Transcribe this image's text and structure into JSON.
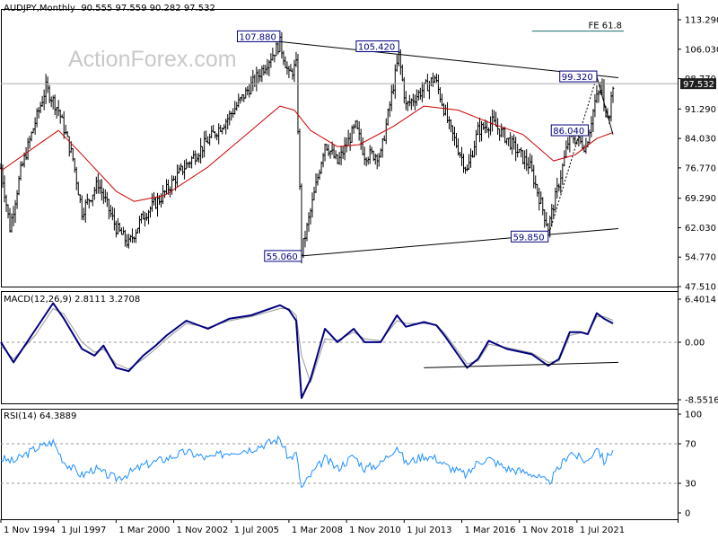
{
  "watermark": "ActionForex.com",
  "chart_data": [
    {
      "id": "price",
      "type": "ohlc",
      "title": "AUDJPY,Monthly",
      "ohlc_readout": "90.555 97.559 90.282 97.532",
      "y_ticks": [
        "113.290",
        "106.030",
        "98.770",
        "91.290",
        "84.030",
        "76.770",
        "69.290",
        "62.030",
        "54.770",
        "47.510"
      ],
      "ylim": [
        47.51,
        113.29
      ],
      "last_price": "97.532",
      "close_path": [
        [
          "1994-11",
          76.7
        ],
        [
          "1995-04",
          62.0
        ],
        [
          "1995-10",
          76.0
        ],
        [
          "1996-06",
          88.0
        ],
        [
          "1996-12",
          96.5
        ],
        [
          "1997-07",
          91.0
        ],
        [
          "1998-03",
          79.0
        ],
        [
          "1998-08",
          66.0
        ],
        [
          "1999-05",
          73.0
        ],
        [
          "2000-03",
          62.0
        ],
        [
          "2000-10",
          58.0
        ],
        [
          "2001-06",
          65.0
        ],
        [
          "2002-04",
          69.5
        ],
        [
          "2003-03",
          76.0
        ],
        [
          "2004-03",
          82.0
        ],
        [
          "2005-05",
          89.0
        ],
        [
          "2006-09",
          99.0
        ],
        [
          "2007-10",
          107.5
        ],
        [
          "2008-03",
          99.5
        ],
        [
          "2008-07",
          102.0
        ],
        [
          "2008-10",
          56.0
        ],
        [
          "2009-03",
          66.0
        ],
        [
          "2009-11",
          83.0
        ],
        [
          "2010-06",
          78.0
        ],
        [
          "2011-04",
          87.0
        ],
        [
          "2011-09",
          80.0
        ],
        [
          "2012-06",
          80.0
        ],
        [
          "2013-04",
          104.5
        ],
        [
          "2013-08",
          92.0
        ],
        [
          "2014-12",
          99.0
        ],
        [
          "2015-08",
          87.0
        ],
        [
          "2016-06",
          76.0
        ],
        [
          "2016-12",
          86.0
        ],
        [
          "2017-08",
          88.0
        ],
        [
          "2018-06",
          83.0
        ],
        [
          "2019-05",
          77.0
        ],
        [
          "2020-03",
          62.0
        ],
        [
          "2020-10",
          75.0
        ],
        [
          "2021-03",
          85.0
        ],
        [
          "2021-06",
          84.0
        ],
        [
          "2021-12",
          82.0
        ],
        [
          "2022-05",
          93.0
        ],
        [
          "2022-09",
          97.0
        ],
        [
          "2022-10",
          91.0
        ],
        [
          "2023-01",
          90.5
        ],
        [
          "2023-03",
          97.5
        ]
      ],
      "ma_path": [
        [
          "1994-11",
          76.0
        ],
        [
          "1996-06",
          82.0
        ],
        [
          "1997-07",
          86.0
        ],
        [
          "1998-06",
          81.0
        ],
        [
          "2000-03",
          71.0
        ],
        [
          "2001-01",
          68.5
        ],
        [
          "2002-06",
          70.0
        ],
        [
          "2004-06",
          77.0
        ],
        [
          "2006-06",
          86.0
        ],
        [
          "2007-10",
          92.0
        ],
        [
          "2008-06",
          91.0
        ],
        [
          "2009-03",
          86.0
        ],
        [
          "2010-06",
          82.0
        ],
        [
          "2011-06",
          82.5
        ],
        [
          "2013-01",
          87.0
        ],
        [
          "2014-06",
          92.0
        ],
        [
          "2016-01",
          91.0
        ],
        [
          "2017-06",
          88.0
        ],
        [
          "2019-01",
          85.0
        ],
        [
          "2020-06",
          78.5
        ],
        [
          "2021-06",
          80.0
        ],
        [
          "2022-06",
          84.0
        ],
        [
          "2023-03",
          85.5
        ]
      ],
      "trendlines": [
        {
          "from": [
            "2007-10",
            107.88
          ],
          "to": [
            "2023-06",
            99.0
          ],
          "style": "solid"
        },
        {
          "from": [
            "2008-10",
            55.06
          ],
          "to": [
            "2023-06",
            61.8
          ],
          "style": "solid"
        },
        {
          "from": [
            "2020-03",
            59.85
          ],
          "to": [
            "2022-06",
            99.32
          ],
          "style": "dotted"
        },
        {
          "from": [
            "2022-06",
            99.32
          ],
          "to": [
            "2023-03",
            85.0
          ],
          "style": "solid"
        }
      ],
      "hlines": [
        {
          "y": 110.5,
          "from": "2019-06",
          "to": "2023-09",
          "label": "FE 61.8"
        }
      ],
      "annotations": [
        {
          "text": "107.880",
          "x": "2007-10",
          "y": 107.88,
          "side": "left",
          "pos": "above"
        },
        {
          "text": "105.420",
          "x": "2013-04",
          "y": 105.42,
          "side": "left",
          "pos": "above"
        },
        {
          "text": "55.060",
          "x": "2008-10",
          "y": 55.06,
          "side": "left",
          "pos": "at"
        },
        {
          "text": "59.850",
          "x": "2020-03",
          "y": 59.85,
          "side": "left",
          "pos": "at"
        },
        {
          "text": "99.320",
          "x": "2022-06",
          "y": 99.32,
          "side": "left",
          "pos": "at"
        },
        {
          "text": "86.040",
          "x": "2021-03",
          "y": 86.04,
          "side": "mid",
          "pos": "at"
        }
      ]
    },
    {
      "id": "macd",
      "type": "line",
      "title": "MACD(12,26,9) 2.8111 3.2708",
      "y_ticks": [
        "6.4014",
        "0.00",
        "-8.5516"
      ],
      "ylim": [
        -8.5516,
        6.4014
      ],
      "main_path": [
        [
          "1994-11",
          0.0
        ],
        [
          "1995-06",
          -3.0
        ],
        [
          "1996-06",
          1.8
        ],
        [
          "1997-04",
          5.8
        ],
        [
          "1997-10",
          3.5
        ],
        [
          "1998-08",
          -1.0
        ],
        [
          "1999-03",
          -2.0
        ],
        [
          "1999-08",
          -0.5
        ],
        [
          "2000-03",
          -3.8
        ],
        [
          "2000-10",
          -4.3
        ],
        [
          "2001-06",
          -2.0
        ],
        [
          "2002-01",
          -0.5
        ],
        [
          "2002-07",
          1.0
        ],
        [
          "2003-06",
          3.2
        ],
        [
          "2004-06",
          2.0
        ],
        [
          "2005-06",
          3.5
        ],
        [
          "2006-06",
          4.0
        ],
        [
          "2007-10",
          5.5
        ],
        [
          "2008-03",
          4.8
        ],
        [
          "2008-07",
          3.2
        ],
        [
          "2008-10",
          -8.3
        ],
        [
          "2009-03",
          -5.5
        ],
        [
          "2009-11",
          2.0
        ],
        [
          "2010-06",
          0.0
        ],
        [
          "2011-03",
          2.0
        ],
        [
          "2011-09",
          0.0
        ],
        [
          "2012-06",
          0.0
        ],
        [
          "2013-03",
          4.0
        ],
        [
          "2013-08",
          2.3
        ],
        [
          "2014-06",
          3.0
        ],
        [
          "2015-01",
          2.5
        ],
        [
          "2015-06",
          0.8
        ],
        [
          "2016-06",
          -3.8
        ],
        [
          "2016-12",
          -2.5
        ],
        [
          "2017-06",
          0.2
        ],
        [
          "2018-04",
          -1.0
        ],
        [
          "2019-06",
          -1.8
        ],
        [
          "2020-03",
          -3.5
        ],
        [
          "2020-09",
          -2.5
        ],
        [
          "2021-03",
          1.5
        ],
        [
          "2021-09",
          1.5
        ],
        [
          "2022-01",
          1.2
        ],
        [
          "2022-06",
          4.3
        ],
        [
          "2022-10",
          3.5
        ],
        [
          "2023-03",
          2.8
        ]
      ],
      "signal_path": [
        [
          "1994-11",
          -0.5
        ],
        [
          "1995-06",
          -2.5
        ],
        [
          "1996-06",
          1.0
        ],
        [
          "1997-04",
          5.0
        ],
        [
          "1997-10",
          4.2
        ],
        [
          "1998-08",
          0.0
        ],
        [
          "1999-03",
          -1.5
        ],
        [
          "1999-08",
          -1.0
        ],
        [
          "2000-03",
          -3.2
        ],
        [
          "2000-10",
          -4.0
        ],
        [
          "2001-06",
          -2.5
        ],
        [
          "2002-01",
          -1.0
        ],
        [
          "2002-07",
          0.5
        ],
        [
          "2003-06",
          2.8
        ],
        [
          "2004-06",
          2.2
        ],
        [
          "2005-06",
          3.2
        ],
        [
          "2006-06",
          3.8
        ],
        [
          "2007-10",
          5.0
        ],
        [
          "2008-03",
          5.0
        ],
        [
          "2008-07",
          4.0
        ],
        [
          "2008-10",
          -2.0
        ],
        [
          "2009-03",
          -6.0
        ],
        [
          "2009-11",
          0.5
        ],
        [
          "2010-06",
          0.3
        ],
        [
          "2011-03",
          1.5
        ],
        [
          "2011-09",
          0.5
        ],
        [
          "2012-06",
          0.2
        ],
        [
          "2013-03",
          3.2
        ],
        [
          "2013-08",
          2.8
        ],
        [
          "2014-06",
          2.8
        ],
        [
          "2015-01",
          2.6
        ],
        [
          "2015-06",
          1.2
        ],
        [
          "2016-06",
          -3.2
        ],
        [
          "2016-12",
          -2.8
        ],
        [
          "2017-06",
          -0.3
        ],
        [
          "2018-04",
          -0.8
        ],
        [
          "2019-06",
          -1.6
        ],
        [
          "2020-03",
          -3.0
        ],
        [
          "2020-09",
          -2.8
        ],
        [
          "2021-03",
          1.0
        ],
        [
          "2021-09",
          1.4
        ],
        [
          "2022-01",
          1.3
        ],
        [
          "2022-06",
          3.8
        ],
        [
          "2022-10",
          3.8
        ],
        [
          "2023-03",
          3.27
        ]
      ],
      "trendlines": [
        {
          "from": [
            "2014-06",
            -3.8
          ],
          "to": [
            "2023-06",
            -3.0
          ],
          "style": "solid"
        }
      ]
    },
    {
      "id": "rsi",
      "type": "line",
      "title": "RSI(14) 64.3889",
      "y_ticks": [
        "100",
        "70",
        "30",
        "0"
      ],
      "ylim": [
        0,
        100
      ],
      "levels": [
        70,
        30
      ],
      "path": [
        [
          "1994-11",
          55
        ],
        [
          "1995-06",
          52
        ],
        [
          "1996-06",
          65
        ],
        [
          "1997-04",
          72
        ],
        [
          "1997-10",
          52
        ],
        [
          "1998-08",
          38
        ],
        [
          "1999-03",
          45
        ],
        [
          "1999-08",
          40
        ],
        [
          "2000-03",
          35
        ],
        [
          "2000-10",
          40
        ],
        [
          "2001-06",
          48
        ],
        [
          "2002-01",
          52
        ],
        [
          "2002-07",
          55
        ],
        [
          "2003-06",
          62
        ],
        [
          "2004-06",
          55
        ],
        [
          "2005-06",
          62
        ],
        [
          "2006-06",
          65
        ],
        [
          "2007-10",
          75
        ],
        [
          "2008-03",
          55
        ],
        [
          "2008-07",
          60
        ],
        [
          "2008-10",
          25
        ],
        [
          "2009-03",
          38
        ],
        [
          "2009-11",
          55
        ],
        [
          "2010-06",
          45
        ],
        [
          "2011-03",
          58
        ],
        [
          "2011-09",
          45
        ],
        [
          "2012-06",
          50
        ],
        [
          "2013-03",
          68
        ],
        [
          "2013-08",
          50
        ],
        [
          "2014-06",
          58
        ],
        [
          "2015-01",
          55
        ],
        [
          "2015-06",
          48
        ],
        [
          "2016-06",
          38
        ],
        [
          "2016-12",
          52
        ],
        [
          "2017-06",
          55
        ],
        [
          "2018-04",
          45
        ],
        [
          "2019-06",
          40
        ],
        [
          "2020-03",
          30
        ],
        [
          "2020-09",
          45
        ],
        [
          "2021-03",
          62
        ],
        [
          "2021-09",
          55
        ],
        [
          "2022-01",
          52
        ],
        [
          "2022-06",
          68
        ],
        [
          "2022-10",
          52
        ],
        [
          "2023-03",
          64.4
        ]
      ]
    }
  ],
  "x_ticks": [
    "1 Nov 1994",
    "1 Jul 1997",
    "1 Mar 2000",
    "1 Nov 2002",
    "1 Jul 2005",
    "1 Mar 2008",
    "1 Nov 2010",
    "1 Jul 2013",
    "1 Mar 2016",
    "1 Nov 2018",
    "1 Jul 2021"
  ],
  "colors": {
    "price": "#000000",
    "ma": "#cc0000",
    "macd_main": "#000080",
    "macd_signal": "#999999",
    "rsi": "#1e90ff",
    "label_border": "#000080",
    "last_price_bg": "#1f1f1f",
    "last_price_text": "#ffffff",
    "grid_dotted": "#999999"
  }
}
